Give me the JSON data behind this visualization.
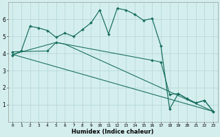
{
  "xlabel": "Humidex (Indice chaleur)",
  "bg_color": "#d4eeee",
  "grid_color": "#b8d8d8",
  "line_color": "#1a7060",
  "xlim": [
    -0.5,
    23.5
  ],
  "ylim": [
    0,
    7
  ],
  "xticks": [
    0,
    1,
    2,
    3,
    4,
    5,
    6,
    7,
    8,
    9,
    10,
    11,
    12,
    13,
    14,
    15,
    16,
    17,
    18,
    19,
    20,
    21,
    22,
    23
  ],
  "yticks": [
    1,
    2,
    3,
    4,
    5,
    6
  ],
  "main_series": [
    [
      0,
      3.9
    ],
    [
      1,
      4.15
    ],
    [
      2,
      5.6
    ],
    [
      3,
      5.5
    ],
    [
      4,
      5.35
    ],
    [
      5,
      4.95
    ],
    [
      6,
      5.2
    ],
    [
      7,
      5.0
    ],
    [
      8,
      5.4
    ],
    [
      9,
      5.8
    ],
    [
      10,
      6.55
    ],
    [
      11,
      5.15
    ],
    [
      12,
      6.65
    ],
    [
      13,
      6.55
    ],
    [
      14,
      6.3
    ],
    [
      15,
      5.95
    ],
    [
      16,
      6.05
    ],
    [
      17,
      4.45
    ],
    [
      18,
      0.75
    ],
    [
      19,
      1.65
    ],
    [
      20,
      1.35
    ],
    [
      21,
      1.1
    ],
    [
      22,
      1.25
    ],
    [
      23,
      0.6
    ]
  ],
  "diag_line1": {
    "x": [
      0,
      23
    ],
    "y": [
      3.95,
      0.6
    ]
  },
  "diag_line2": {
    "x": [
      0,
      5,
      6,
      23
    ],
    "y": [
      3.95,
      4.65,
      4.55,
      0.6
    ]
  },
  "diag_line3": {
    "x": [
      0,
      4,
      5,
      16,
      17,
      18,
      19,
      20,
      21,
      22,
      23
    ],
    "y": [
      4.1,
      4.15,
      4.65,
      3.6,
      3.5,
      1.6,
      1.65,
      1.35,
      1.1,
      1.25,
      0.6
    ]
  }
}
